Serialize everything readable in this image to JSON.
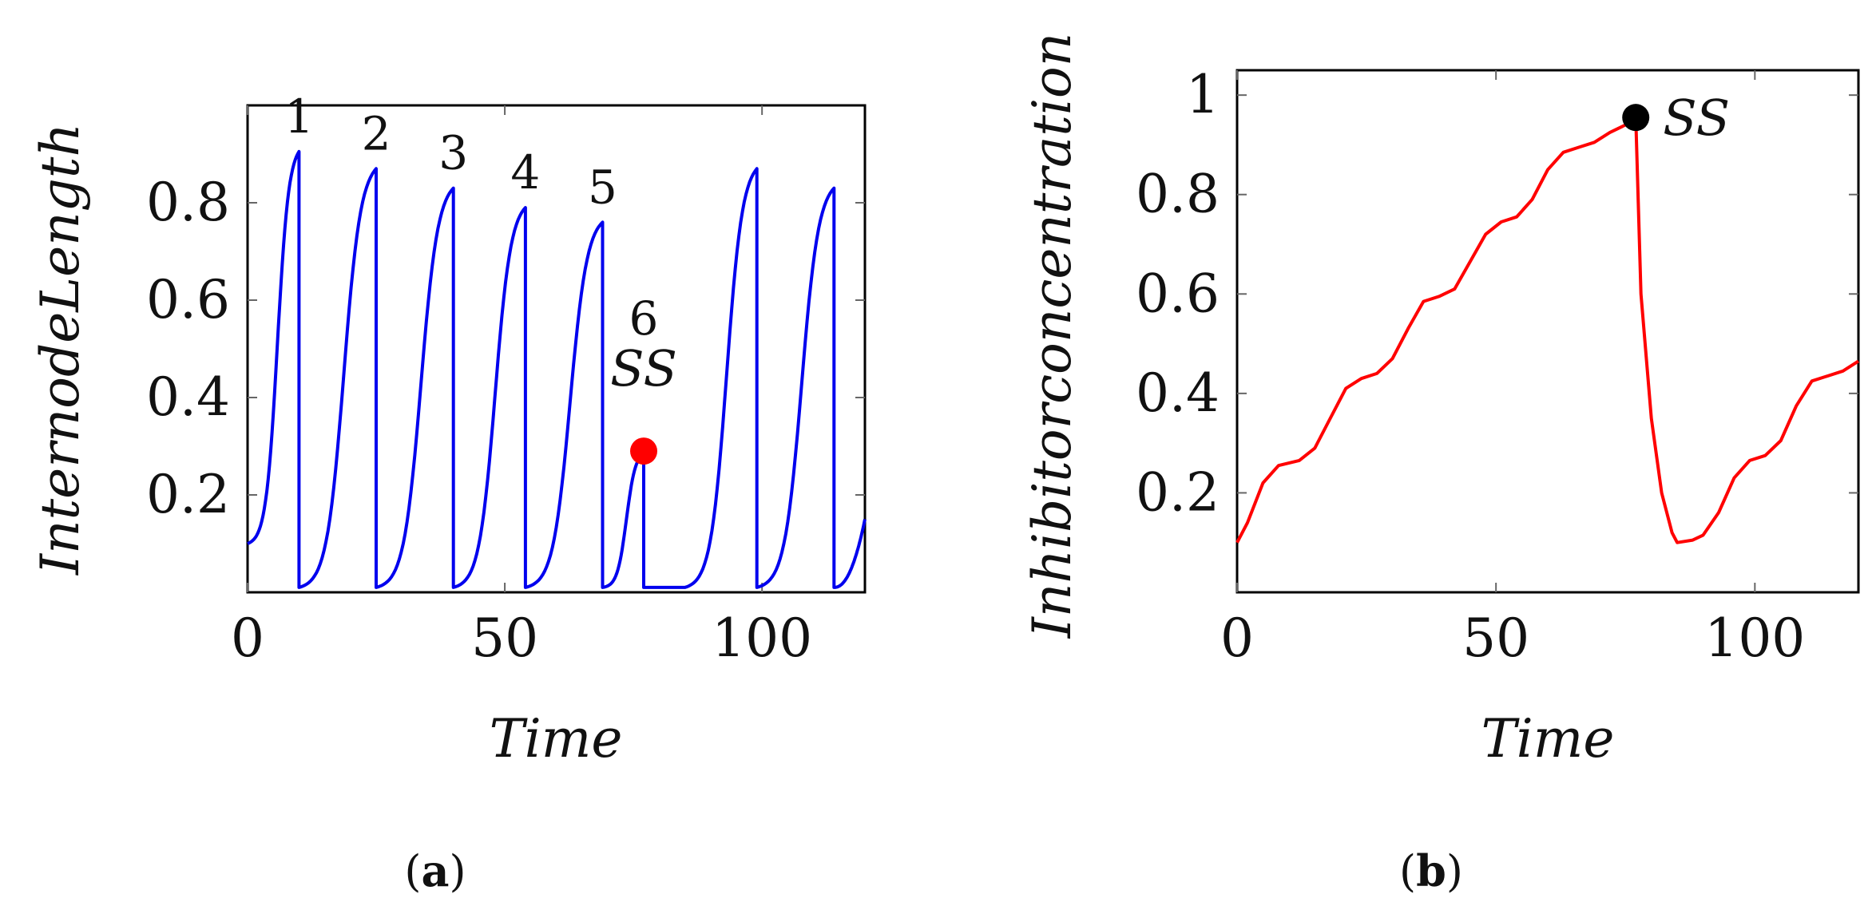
{
  "chart_data": [
    {
      "type": "line",
      "panel": "a",
      "xlabel": "Time",
      "ylabel": "InternodeLength",
      "xlim": [
        0,
        120
      ],
      "ylim": [
        0,
        1.0
      ],
      "xticks": [
        0,
        50,
        100
      ],
      "yticks": [
        0.2,
        0.4,
        0.6,
        0.8
      ],
      "xtick_labels": [
        "0",
        "50",
        "100"
      ],
      "ytick_labels": [
        "0.2",
        "0.4",
        "0.6",
        "0.8"
      ],
      "line_color": "#0000ee",
      "series": [
        {
          "name": "internode length",
          "cycles": [
            {
              "start": 0,
              "end": 10,
              "y0": 0.1,
              "y1": 0.905
            },
            {
              "start": 10,
              "end": 25,
              "y0": 0.01,
              "y1": 0.87
            },
            {
              "start": 25,
              "end": 40,
              "y0": 0.01,
              "y1": 0.83
            },
            {
              "start": 40,
              "end": 54,
              "y0": 0.01,
              "y1": 0.79
            },
            {
              "start": 54,
              "end": 69,
              "y0": 0.01,
              "y1": 0.76
            },
            {
              "start": 69,
              "end": 77,
              "y0": 0.01,
              "y1": 0.285
            },
            {
              "start": 77,
              "end": 85,
              "y0": 0.01,
              "y1": 0.01,
              "flat": true
            },
            {
              "start": 85,
              "end": 99,
              "y0": 0.01,
              "y1": 0.87
            },
            {
              "start": 99,
              "end": 114,
              "y0": 0.01,
              "y1": 0.83
            },
            {
              "start": 114,
              "end": 120,
              "y0": 0.01,
              "y1": 0.15,
              "open": true
            }
          ]
        }
      ],
      "annotations": [
        {
          "text": "1",
          "x": 10,
          "y": 0.905
        },
        {
          "text": "2",
          "x": 25,
          "y": 0.87
        },
        {
          "text": "3",
          "x": 40,
          "y": 0.83
        },
        {
          "text": "4",
          "x": 54,
          "y": 0.79
        },
        {
          "text": "5",
          "x": 69,
          "y": 0.76
        },
        {
          "text": "6",
          "x": 77,
          "y": 0.49
        },
        {
          "text": "SS",
          "x": 77,
          "y": 0.385
        }
      ],
      "marker": {
        "x": 77,
        "y": 0.29,
        "color": "#ff0000",
        "label": "SS"
      },
      "caption_open": "(",
      "caption_letter": "a",
      "caption_close": ")"
    },
    {
      "type": "line",
      "panel": "b",
      "xlabel": "Time",
      "ylabel": "Inhibitorconcentration",
      "xlim": [
        0,
        120
      ],
      "ylim": [
        0,
        1.05
      ],
      "xticks": [
        0,
        50,
        100
      ],
      "yticks": [
        0.2,
        0.4,
        0.6,
        0.8,
        1.0
      ],
      "xtick_labels": [
        "0",
        "50",
        "100"
      ],
      "ytick_labels": [
        "0.2",
        "0.4",
        "0.6",
        "0.8",
        "1"
      ],
      "line_color": "#ff0000",
      "series": [
        {
          "name": "inhibitor concentration",
          "x": [
            0,
            2,
            5,
            8,
            10,
            12,
            15,
            18,
            21,
            24,
            27,
            30,
            33,
            36,
            39,
            42,
            45,
            48,
            51,
            54,
            57,
            60,
            63,
            66,
            69,
            72,
            75,
            77,
            78,
            80,
            82,
            84,
            85,
            88,
            90,
            93,
            96,
            99,
            102,
            105,
            108,
            111,
            114,
            117,
            120
          ],
          "y": [
            0.1,
            0.14,
            0.22,
            0.255,
            0.26,
            0.265,
            0.29,
            0.35,
            0.41,
            0.43,
            0.44,
            0.47,
            0.53,
            0.585,
            0.595,
            0.61,
            0.665,
            0.72,
            0.745,
            0.755,
            0.79,
            0.85,
            0.885,
            0.895,
            0.905,
            0.925,
            0.94,
            0.955,
            0.6,
            0.35,
            0.2,
            0.12,
            0.1,
            0.105,
            0.115,
            0.16,
            0.23,
            0.265,
            0.275,
            0.305,
            0.375,
            0.425,
            0.435,
            0.445,
            0.465
          ]
        }
      ],
      "annotations": [
        {
          "text": "SS",
          "x": 77,
          "y": 0.955
        }
      ],
      "marker": {
        "x": 77,
        "y": 0.955,
        "color": "#000000",
        "label": "SS"
      },
      "caption_open": "(",
      "caption_letter": "b",
      "caption_close": ")"
    }
  ]
}
